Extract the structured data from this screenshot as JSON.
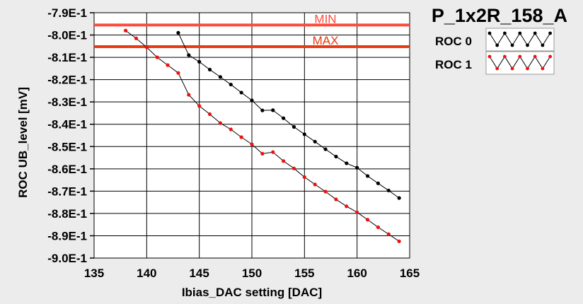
{
  "chart_data": {
    "type": "line",
    "title": "P_1x2R_158_A",
    "xlabel": "Ibias_DAC setting [DAC]",
    "ylabel": "ROC UB_level [mV]",
    "xlim": [
      135,
      165
    ],
    "ylim": [
      -0.9,
      -0.79
    ],
    "x_ticks": [
      "135",
      "140",
      "145",
      "150",
      "155",
      "160",
      "165"
    ],
    "x_tick_values": [
      135,
      140,
      145,
      150,
      155,
      160,
      165
    ],
    "y_ticks": [
      "-7.9E-1",
      "-8.0E-1",
      "-8.1E-1",
      "-8.2E-1",
      "-8.3E-1",
      "-8.4E-1",
      "-8.5E-1",
      "-8.6E-1",
      "-8.7E-1",
      "-8.8E-1",
      "-8.9E-1",
      "-9.0E-1"
    ],
    "y_tick_values": [
      -0.79,
      -0.8,
      -0.81,
      -0.82,
      -0.83,
      -0.84,
      -0.85,
      -0.86,
      -0.87,
      -0.88,
      -0.89,
      -0.9
    ],
    "grid": true,
    "legend_position": "top-right",
    "reference_lines": [
      {
        "label": "MIN",
        "y": -0.7955,
        "color": "#ff4a3a"
      },
      {
        "label": "MAX",
        "y": -0.8052,
        "color": "#e83a10"
      }
    ],
    "series": [
      {
        "name": "ROC 0",
        "color": "#000000",
        "x": [
          143,
          144,
          145,
          146,
          147,
          148,
          149,
          150,
          151,
          152,
          153,
          154,
          155,
          156,
          157,
          158,
          159,
          160,
          161,
          162,
          163,
          164
        ],
        "y": [
          -0.799,
          -0.809,
          -0.812,
          -0.8155,
          -0.8188,
          -0.8222,
          -0.8258,
          -0.8293,
          -0.8338,
          -0.8337,
          -0.8373,
          -0.8412,
          -0.8445,
          -0.8478,
          -0.8512,
          -0.8545,
          -0.8575,
          -0.8595,
          -0.8632,
          -0.8665,
          -0.8697,
          -0.8731
        ]
      },
      {
        "name": "ROC 1",
        "color": "#ee1111",
        "x": [
          138,
          139,
          140,
          141,
          142,
          143,
          144,
          145,
          146,
          147,
          148,
          149,
          150,
          151,
          152,
          153,
          154,
          155,
          156,
          157,
          158,
          159,
          160,
          161,
          162,
          163,
          164
        ],
        "y": [
          -0.798,
          -0.8015,
          -0.8055,
          -0.81,
          -0.8135,
          -0.817,
          -0.8268,
          -0.8318,
          -0.8355,
          -0.8395,
          -0.8423,
          -0.8458,
          -0.849,
          -0.8532,
          -0.8525,
          -0.8565,
          -0.8598,
          -0.8637,
          -0.867,
          -0.8702,
          -0.8737,
          -0.8768,
          -0.8795,
          -0.8828,
          -0.8862,
          -0.8893,
          -0.8925
        ]
      }
    ]
  }
}
